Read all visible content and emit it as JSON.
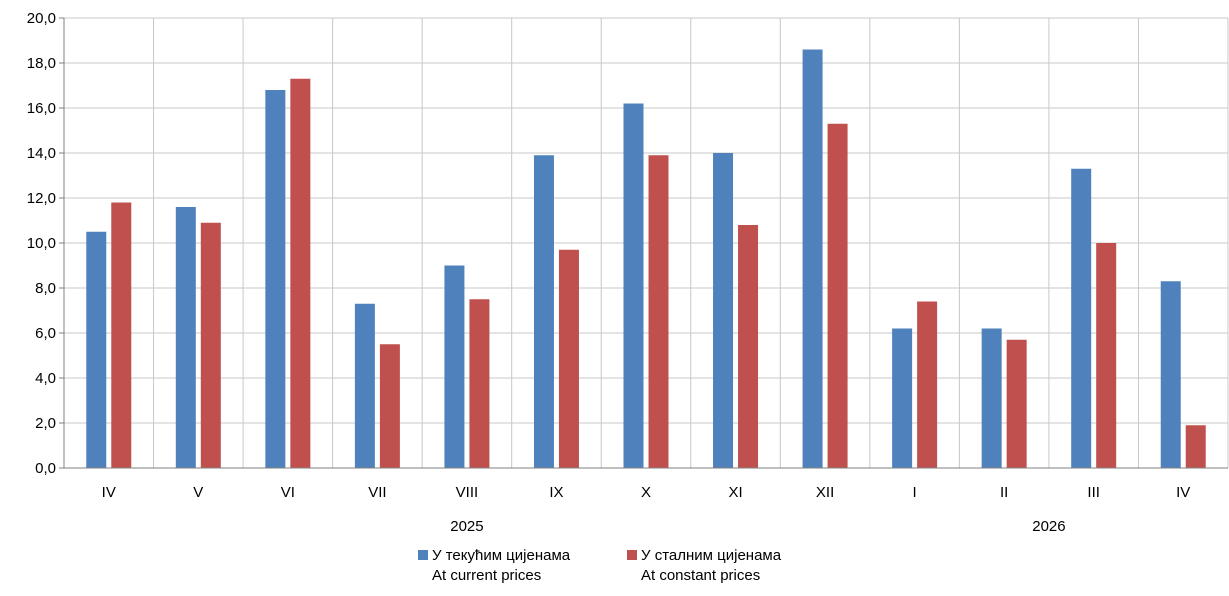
{
  "chart_data": {
    "type": "bar",
    "categories": [
      "IV",
      "V",
      "VI",
      "VII",
      "VIII",
      "IX",
      "X",
      "XI",
      "XII",
      "I",
      "II",
      "III",
      "IV"
    ],
    "year_groups": [
      {
        "label": "2025",
        "from": 0,
        "to": 8
      },
      {
        "label": "2026",
        "from": 9,
        "to": 12
      }
    ],
    "series": [
      {
        "name": "У текућим цијенама",
        "name_en": "At current prices",
        "color": "#4f81bd",
        "values": [
          10.5,
          11.6,
          16.8,
          7.3,
          9.0,
          13.9,
          16.2,
          14.0,
          18.6,
          6.2,
          6.2,
          13.3,
          8.3
        ]
      },
      {
        "name": "У сталним цијенама",
        "name_en": "At constant prices",
        "color": "#c0504d",
        "values": [
          11.8,
          10.9,
          17.3,
          5.5,
          7.5,
          9.7,
          13.9,
          10.8,
          15.3,
          7.4,
          5.7,
          10.0,
          1.9
        ]
      }
    ],
    "y_ticks": [
      "0,0",
      "2,0",
      "4,0",
      "6,0",
      "8,0",
      "10,0",
      "12,0",
      "14,0",
      "16,0",
      "18,0",
      "20,0"
    ],
    "ylim": [
      0,
      20
    ],
    "grid": true,
    "legend_position": "bottom-center"
  },
  "legend": [
    {
      "label": "У текућим цијенама",
      "label_en": "At current prices",
      "color": "#4f81bd"
    },
    {
      "label": "У сталним цијенама",
      "label_en": "At constant prices",
      "color": "#c0504d"
    }
  ]
}
